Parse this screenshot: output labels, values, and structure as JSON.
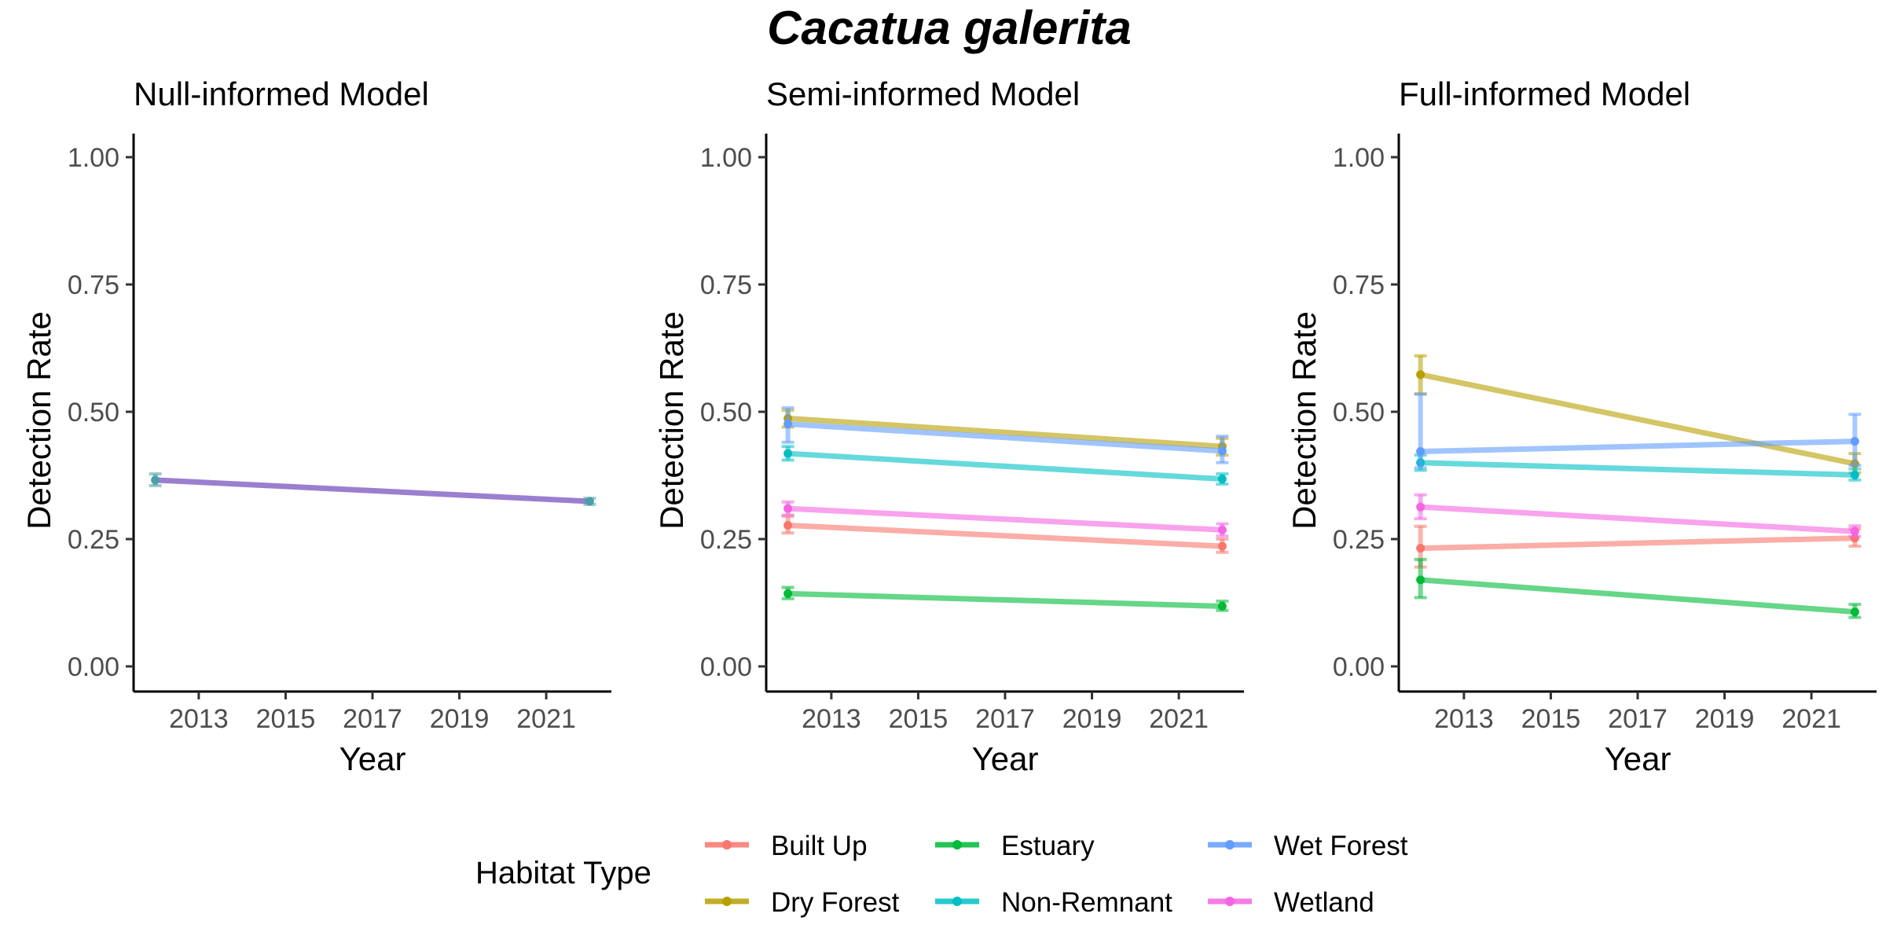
{
  "figure": {
    "title": "Cacatua galerita",
    "legend_title": "Habitat Type"
  },
  "colors": {
    "Built Up": "#F8766D",
    "Dry Forest": "#B79F00",
    "Estuary": "#00BA38",
    "Non-Remnant": "#00BFC4",
    "Wet Forest": "#619CFF",
    "Wetland": "#F564E3",
    "null_line": "#9b7fcf",
    "null_point": "#4a9fa8"
  },
  "legend": {
    "items": [
      "Built Up",
      "Dry Forest",
      "Estuary",
      "Non-Remnant",
      "Wet Forest",
      "Wetland"
    ],
    "position": "bottom"
  },
  "chart_data": [
    {
      "type": "line",
      "title": "Null-informed Model",
      "xlabel": "Year",
      "ylabel": "Detection Rate",
      "xlim": [
        2011.5,
        2022.5
      ],
      "ylim": [
        0,
        1
      ],
      "x_ticks": [
        2013,
        2015,
        2017,
        2019,
        2021
      ],
      "y_ticks": [
        "0.00",
        "0.25",
        "0.50",
        "0.75",
        "1.00"
      ],
      "grid": false,
      "x": [
        2012,
        2022
      ],
      "series": [
        {
          "values": [
            0.366,
            0.324
          ],
          "lower": [
            0.355,
            0.318
          ],
          "upper": [
            0.378,
            0.33
          ]
        }
      ]
    },
    {
      "type": "line",
      "title": "Semi-informed Model",
      "xlabel": "Year",
      "ylabel": "Detection Rate",
      "xlim": [
        2011.5,
        2022.5
      ],
      "ylim": [
        0,
        1
      ],
      "x_ticks": [
        2013,
        2015,
        2017,
        2019,
        2021
      ],
      "y_ticks": [
        "0.00",
        "0.25",
        "0.50",
        "0.75",
        "1.00"
      ],
      "grid": false,
      "x": [
        2012,
        2022
      ],
      "series": [
        {
          "name": "Built Up",
          "values": [
            0.277,
            0.236
          ],
          "lower": [
            0.262,
            0.224
          ],
          "upper": [
            0.295,
            0.25
          ]
        },
        {
          "name": "Dry Forest",
          "values": [
            0.487,
            0.432
          ],
          "lower": [
            0.47,
            0.415
          ],
          "upper": [
            0.503,
            0.448
          ]
        },
        {
          "name": "Estuary",
          "values": [
            0.143,
            0.118
          ],
          "lower": [
            0.133,
            0.11
          ],
          "upper": [
            0.155,
            0.128
          ]
        },
        {
          "name": "Non-Remnant",
          "values": [
            0.418,
            0.368
          ],
          "lower": [
            0.405,
            0.358
          ],
          "upper": [
            0.432,
            0.378
          ]
        },
        {
          "name": "Wet Forest",
          "values": [
            0.476,
            0.423
          ],
          "lower": [
            0.44,
            0.4
          ],
          "upper": [
            0.508,
            0.452
          ]
        },
        {
          "name": "Wetland",
          "values": [
            0.31,
            0.268
          ],
          "lower": [
            0.297,
            0.256
          ],
          "upper": [
            0.323,
            0.28
          ]
        }
      ]
    },
    {
      "type": "line",
      "title": "Full-informed Model",
      "xlabel": "Year",
      "ylabel": "Detection Rate",
      "xlim": [
        2011.5,
        2022.5
      ],
      "ylim": [
        0,
        1
      ],
      "x_ticks": [
        2013,
        2015,
        2017,
        2019,
        2021
      ],
      "y_ticks": [
        "0.00",
        "0.25",
        "0.50",
        "0.75",
        "1.00"
      ],
      "grid": false,
      "x": [
        2012,
        2022
      ],
      "series": [
        {
          "name": "Built Up",
          "values": [
            0.232,
            0.252
          ],
          "lower": [
            0.195,
            0.236
          ],
          "upper": [
            0.275,
            0.27
          ]
        },
        {
          "name": "Dry Forest",
          "values": [
            0.573,
            0.398
          ],
          "lower": [
            0.535,
            0.38
          ],
          "upper": [
            0.61,
            0.418
          ]
        },
        {
          "name": "Estuary",
          "values": [
            0.17,
            0.107
          ],
          "lower": [
            0.135,
            0.096
          ],
          "upper": [
            0.21,
            0.122
          ]
        },
        {
          "name": "Non-Remnant",
          "values": [
            0.4,
            0.376
          ],
          "lower": [
            0.385,
            0.366
          ],
          "upper": [
            0.415,
            0.388
          ]
        },
        {
          "name": "Wet Forest",
          "values": [
            0.422,
            0.442
          ],
          "lower": [
            0.39,
            0.395
          ],
          "upper": [
            0.535,
            0.495
          ]
        },
        {
          "name": "Wetland",
          "values": [
            0.313,
            0.265
          ],
          "lower": [
            0.29,
            0.255
          ],
          "upper": [
            0.337,
            0.276
          ]
        }
      ]
    }
  ]
}
